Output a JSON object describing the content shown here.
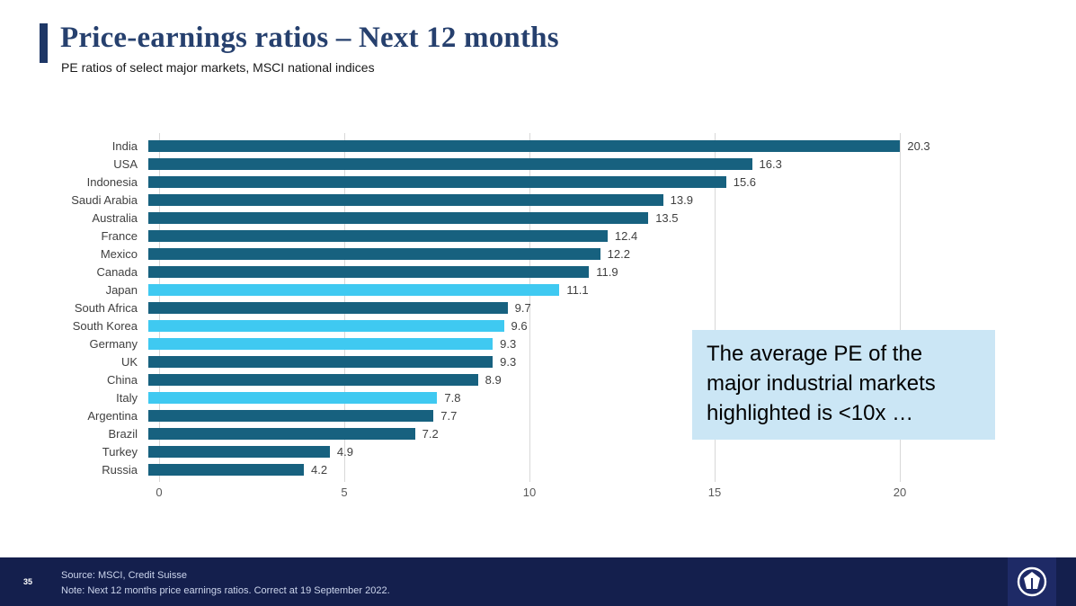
{
  "slide": {
    "title": "Price-earnings ratios – Next 12 months",
    "subtitle": "PE ratios of select major markets, MSCI national indices"
  },
  "callout": {
    "text": "The average PE of the major industrial markets highlighted is <10x …"
  },
  "footer": {
    "page_number": "35",
    "source": "Source: MSCI, Credit Suisse",
    "note": "Note: Next 12 months price earnings ratios. Correct at 19 September 2022.",
    "logo": "credit-suisse-logo"
  },
  "chart_data": {
    "type": "bar",
    "orientation": "horizontal",
    "title": "Price-earnings ratios – Next 12 months",
    "categories": [
      "India",
      "USA",
      "Indonesia",
      "Saudi Arabia",
      "Australia",
      "France",
      "Mexico",
      "Canada",
      "Japan",
      "South Africa",
      "South Korea",
      "Germany",
      "UK",
      "China",
      "Italy",
      "Argentina",
      "Brazil",
      "Turkey",
      "Russia"
    ],
    "values": [
      20.3,
      16.3,
      15.6,
      13.9,
      13.5,
      12.4,
      12.2,
      11.9,
      11.1,
      9.7,
      9.6,
      9.3,
      9.3,
      8.9,
      7.8,
      7.7,
      7.2,
      4.9,
      4.2
    ],
    "highlighted": [
      "Japan",
      "South Korea",
      "Germany",
      "Italy"
    ],
    "colors": {
      "default": "#17617F",
      "highlight": "#3FC9F1"
    },
    "xlim": [
      0,
      24
    ],
    "xticks": [
      0,
      5,
      10,
      15,
      20
    ],
    "grid": true,
    "value_labels": true,
    "xlabel": "",
    "ylabel": ""
  }
}
